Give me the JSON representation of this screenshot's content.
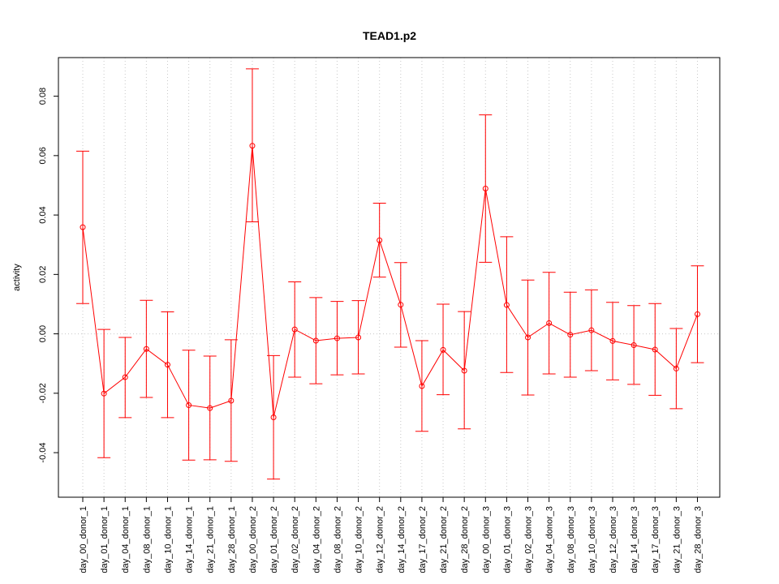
{
  "chart_data": {
    "type": "line",
    "title": "TEAD1.p2",
    "xlabel": "",
    "ylabel": "activity",
    "ylim": [
      -0.055,
      0.093
    ],
    "yticks": [
      -0.04,
      -0.02,
      0.0,
      0.02,
      0.04,
      0.06,
      0.08
    ],
    "ytick_labels": [
      "-0.04",
      "-0.02",
      "0.00",
      "0.02",
      "0.04",
      "0.06",
      "0.08"
    ],
    "grid": true,
    "series_color": "#ff0000",
    "grid_color": "#c8c8c8",
    "categories": [
      "day_00_donor_1",
      "day_01_donor_1",
      "day_04_donor_1",
      "day_08_donor_1",
      "day_10_donor_1",
      "day_14_donor_1",
      "day_21_donor_1",
      "day_28_donor_1",
      "day_00_donor_2",
      "day_01_donor_2",
      "day_02_donor_2",
      "day_04_donor_2",
      "day_08_donor_2",
      "day_10_donor_2",
      "day_12_donor_2",
      "day_14_donor_2",
      "day_17_donor_2",
      "day_21_donor_2",
      "day_28_donor_2",
      "day_00_donor_3",
      "day_01_donor_3",
      "day_02_donor_3",
      "day_04_donor_3",
      "day_08_donor_3",
      "day_10_donor_3",
      "day_12_donor_3",
      "day_14_donor_3",
      "day_17_donor_3",
      "day_21_donor_3",
      "day_28_donor_3"
    ],
    "values": [
      0.0359,
      -0.0201,
      -0.0146,
      -0.0051,
      -0.0104,
      -0.024,
      -0.025,
      -0.0225,
      0.0633,
      -0.0281,
      0.0015,
      -0.0023,
      -0.0015,
      -0.0012,
      0.0315,
      0.0098,
      -0.0176,
      -0.0054,
      -0.0124,
      0.0489,
      0.0097,
      -0.0012,
      0.0036,
      -0.0003,
      0.0012,
      -0.0024,
      -0.0038,
      -0.0053,
      -0.0117,
      0.0066
    ],
    "upper": [
      0.0615,
      0.0015,
      -0.0012,
      0.0113,
      0.0074,
      -0.0055,
      -0.0075,
      -0.002,
      0.0892,
      -0.0073,
      0.0175,
      0.0122,
      0.0109,
      0.0112,
      0.044,
      0.024,
      -0.0023,
      0.01,
      0.0075,
      0.0737,
      0.0327,
      0.0181,
      0.0207,
      0.014,
      0.0148,
      0.0106,
      0.0095,
      0.0102,
      0.0018,
      0.0229
    ],
    "lower": [
      0.0102,
      -0.0417,
      -0.0282,
      -0.0214,
      -0.0282,
      -0.0425,
      -0.0424,
      -0.0429,
      0.0377,
      -0.0489,
      -0.0146,
      -0.0168,
      -0.0138,
      -0.0135,
      0.0191,
      -0.0045,
      -0.0328,
      -0.0205,
      -0.032,
      0.0241,
      -0.013,
      -0.0206,
      -0.0135,
      -0.0146,
      -0.0124,
      -0.0155,
      -0.017,
      -0.0207,
      -0.0252,
      -0.0097
    ]
  }
}
